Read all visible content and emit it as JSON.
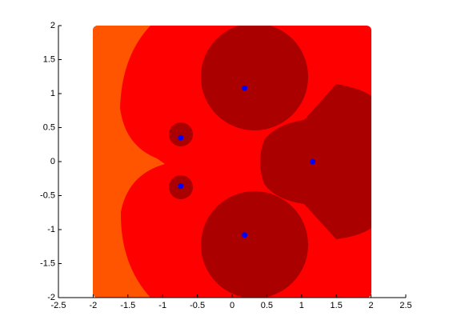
{
  "chart_data": {
    "type": "scatter",
    "x": [
      0.18,
      0.18,
      1.16,
      -0.74,
      -0.74
    ],
    "values": [
      1.08,
      -1.08,
      0,
      0.35,
      -0.36
    ],
    "color": "#0000ff",
    "xlim": [
      -2.5,
      2.5
    ],
    "ylim": [
      -2,
      2
    ],
    "xticks": [
      -2.5,
      -2,
      -1.5,
      -1,
      -0.5,
      0,
      0.5,
      1,
      1.5,
      2,
      2.5
    ],
    "yticks": [
      -2,
      -1.5,
      -1,
      -0.5,
      0,
      0.5,
      1,
      1.5,
      2
    ]
  }
}
